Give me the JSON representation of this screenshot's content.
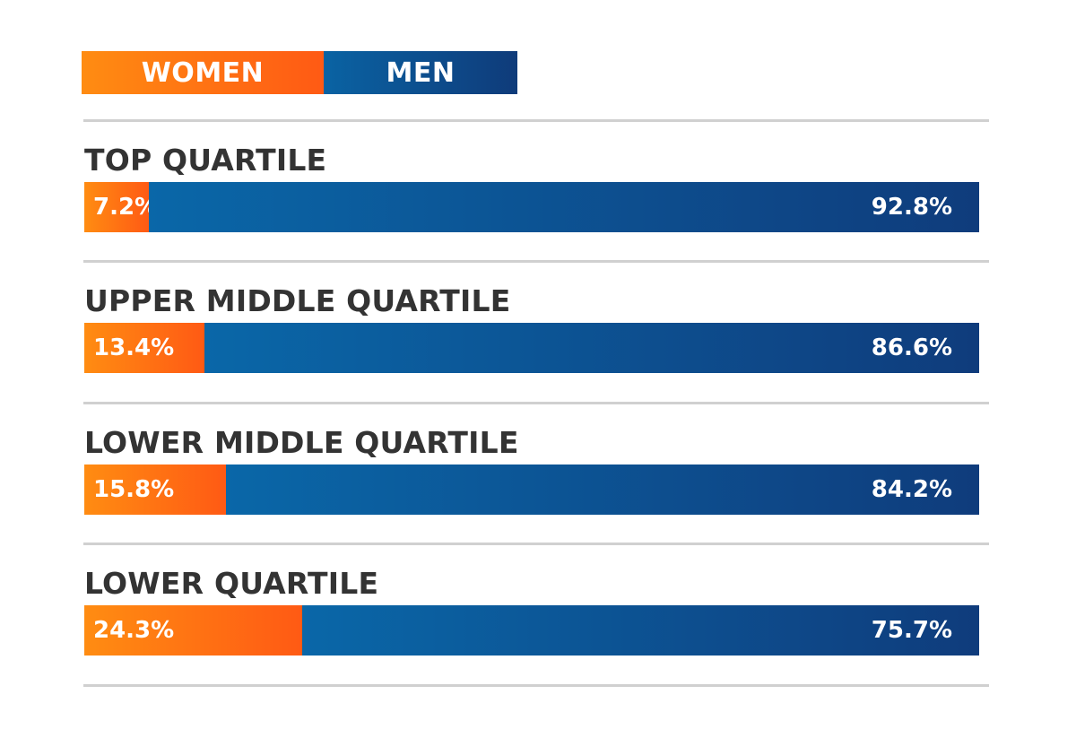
{
  "chart_data": {
    "type": "bar",
    "stacked": true,
    "orientation": "horizontal",
    "categories": [
      "TOP QUARTILE",
      "UPPER MIDDLE QUARTILE",
      "LOWER MIDDLE QUARTILE",
      "LOWER QUARTILE"
    ],
    "series": [
      {
        "name": "WOMEN",
        "values": [
          7.2,
          13.4,
          15.8,
          24.3
        ],
        "labels": [
          "7.2%",
          "13.4%",
          "15.8%",
          "24.3%"
        ],
        "color": "#ff7a12"
      },
      {
        "name": "MEN",
        "values": [
          92.8,
          86.6,
          84.2,
          75.7
        ],
        "labels": [
          "92.8%",
          "86.6%",
          "84.2%",
          "75.7%"
        ],
        "color": "#0a4f92"
      }
    ],
    "xlim": [
      0,
      100
    ],
    "legend_position": "top-left",
    "grid": false
  }
}
